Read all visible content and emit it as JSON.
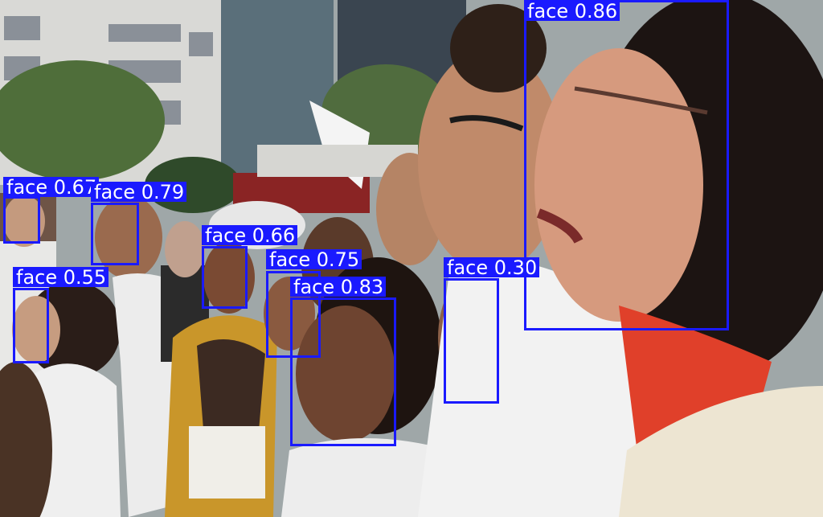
{
  "image": {
    "scene": "crowd-of-people-outdoors"
  },
  "colors": {
    "box": "#1a1aff",
    "label_text": "#ffffff"
  },
  "detections": [
    {
      "label": "face 0.67",
      "score": 0.67
    },
    {
      "label": "face 0.79",
      "score": 0.79
    },
    {
      "label": "face 0.66",
      "score": 0.66
    },
    {
      "label": "face 0.75",
      "score": 0.75
    },
    {
      "label": "face 0.55",
      "score": 0.55
    },
    {
      "label": "face 0.83",
      "score": 0.83
    },
    {
      "label": "face 0.30",
      "score": 0.3
    },
    {
      "label": "face 0.86",
      "score": 0.86
    }
  ]
}
